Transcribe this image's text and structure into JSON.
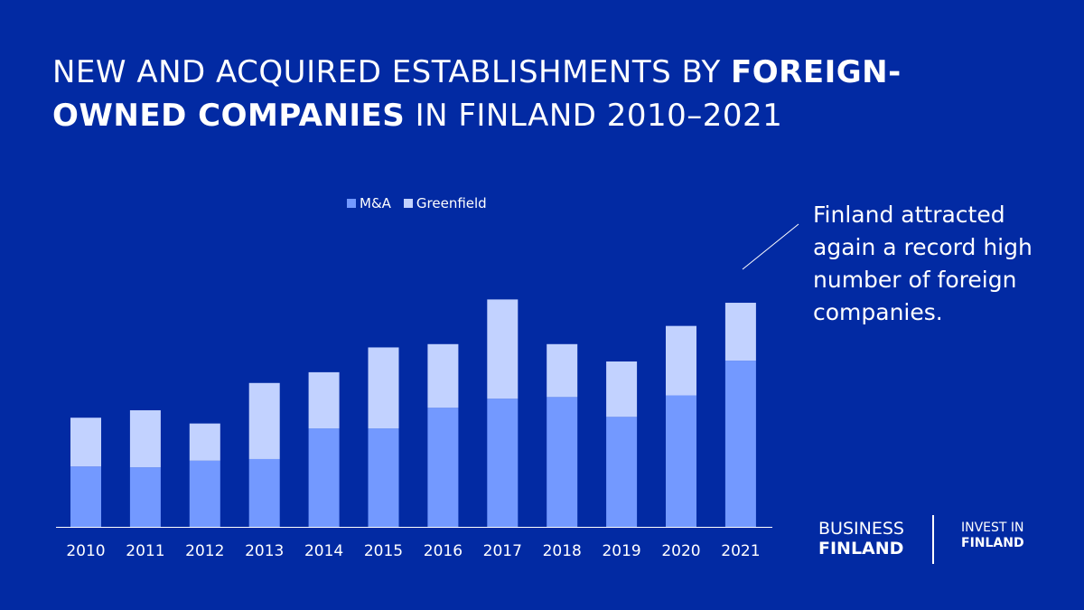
{
  "header": {
    "title_part1": "NEW AND ACQUIRED ESTABLISHMENTS BY ",
    "title_bold1": "FOREIGN-OWNED COMPANIES",
    "title_part2": " IN FINLAND 2010–2021"
  },
  "callout": {
    "text": "Finland attracted again a record high number of foreign companies."
  },
  "logos": {
    "business_finland_line1": "BUSINESS",
    "business_finland_line2": "FINLAND",
    "invest_in_finland_line1": "INVEST IN",
    "invest_in_finland_line2": "FINLAND"
  },
  "colors": {
    "background": "#022aa3",
    "ma": "#7399ff",
    "greenfield": "#c2d2ff"
  },
  "chart_data": {
    "type": "bar",
    "stacked": true,
    "categories": [
      "2010",
      "2011",
      "2012",
      "2013",
      "2014",
      "2015",
      "2016",
      "2017",
      "2018",
      "2019",
      "2020",
      "2021"
    ],
    "series": [
      {
        "name": "M&A",
        "color": "#7399ff",
        "values": [
          73,
          72,
          80,
          82,
          119,
          119,
          144,
          155,
          157,
          133,
          159,
          201
        ]
      },
      {
        "name": "Greenfield",
        "color": "#c2d2ff",
        "values": [
          59,
          69,
          45,
          92,
          68,
          98,
          77,
          120,
          64,
          67,
          84,
          70
        ]
      }
    ],
    "legend_position": "top-center",
    "ylim": [
      0,
      300
    ],
    "grid": false,
    "xlabel": "",
    "ylabel": ""
  }
}
